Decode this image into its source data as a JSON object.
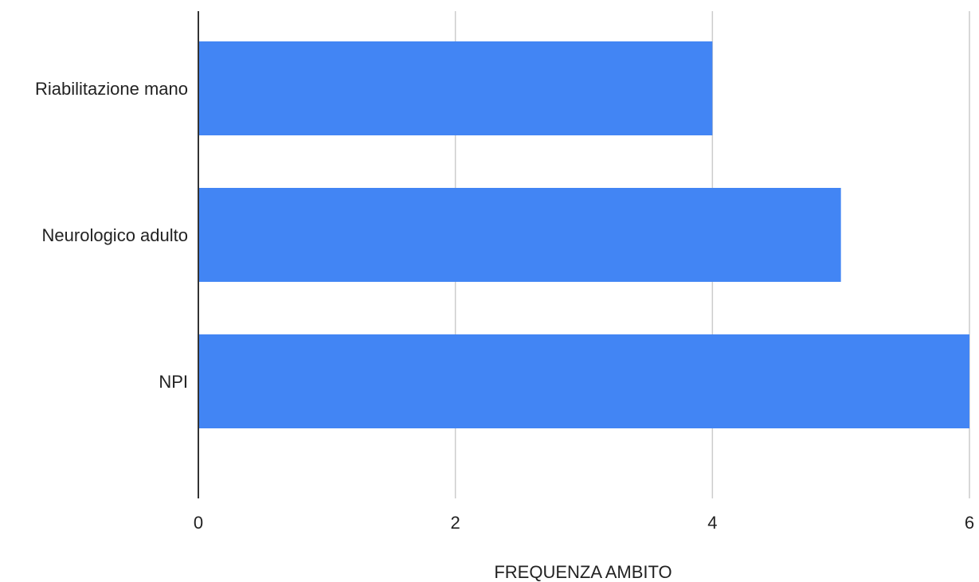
{
  "chart_data": {
    "type": "bar",
    "orientation": "horizontal",
    "categories": [
      "Riabilitazione mano",
      "Neurologico adulto",
      "NPI"
    ],
    "values": [
      4,
      5,
      6
    ],
    "title": "",
    "xlabel": "FREQUENZA AMBITO",
    "ylabel": "",
    "xlim": [
      0,
      6
    ],
    "x_ticks": [
      0,
      2,
      4,
      6
    ],
    "grid": true,
    "legend": "none",
    "bar_color": "#4285f4",
    "grid_color": "#cccccc",
    "axis_color": "#333333"
  }
}
